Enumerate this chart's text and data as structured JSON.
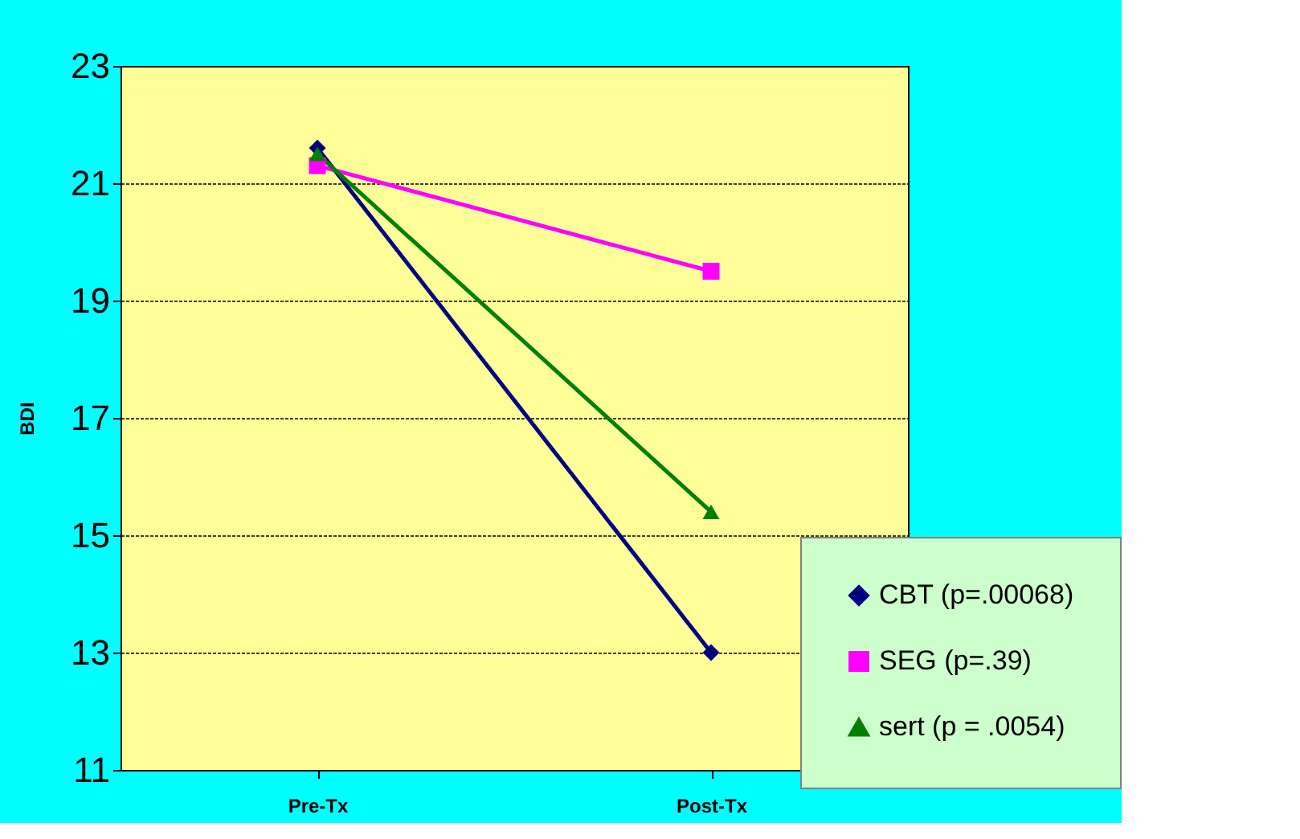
{
  "chart_data": {
    "type": "line",
    "ylabel": "BDI",
    "categories": [
      "Pre-Tx",
      "Post-Tx"
    ],
    "series": [
      {
        "name": "CBT (p=.00068)",
        "color": "#000080",
        "marker": "diamond",
        "values": [
          21.6,
          13.0
        ]
      },
      {
        "name": "SEG (p=.39)",
        "color": "#ff00ff",
        "marker": "square",
        "values": [
          21.3,
          19.5
        ]
      },
      {
        "name": "sert (p = .0054)",
        "color": "#008000",
        "marker": "triangle",
        "values": [
          21.5,
          15.4
        ]
      }
    ],
    "ylim": [
      11,
      23
    ],
    "yticks": [
      11,
      13,
      15,
      17,
      19,
      21,
      23
    ],
    "grid": "y",
    "legend": "bottom right",
    "line_style": "solid"
  }
}
